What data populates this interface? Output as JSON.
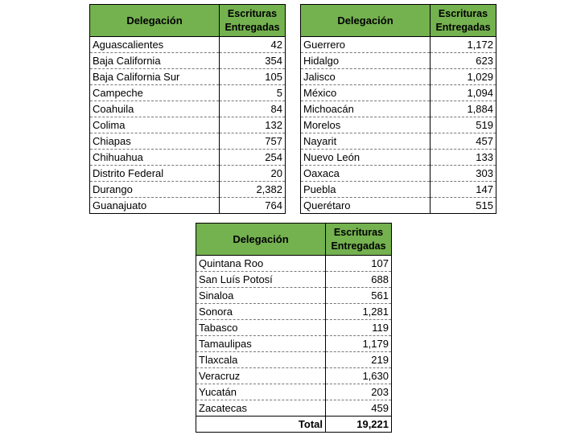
{
  "header": {
    "name": "Delegación",
    "value_line1": "Escrituras",
    "value_line2": "Entregadas"
  },
  "tables": [
    {
      "rows": [
        {
          "name": "Aguascalientes",
          "value": "42"
        },
        {
          "name": "Baja California",
          "value": "354"
        },
        {
          "name": "Baja California Sur",
          "value": "105"
        },
        {
          "name": "Campeche",
          "value": "5"
        },
        {
          "name": "Coahuila",
          "value": "84"
        },
        {
          "name": "Colima",
          "value": "132"
        },
        {
          "name": "Chiapas",
          "value": "757"
        },
        {
          "name": "Chihuahua",
          "value": "254"
        },
        {
          "name": "Distrito Federal",
          "value": "20"
        },
        {
          "name": "Durango",
          "value": "2,382"
        },
        {
          "name": "Guanajuato",
          "value": "764"
        }
      ]
    },
    {
      "rows": [
        {
          "name": "Guerrero",
          "value": "1,172"
        },
        {
          "name": "Hidalgo",
          "value": "623"
        },
        {
          "name": "Jalisco",
          "value": "1,029"
        },
        {
          "name": "México",
          "value": "1,094"
        },
        {
          "name": "Michoacán",
          "value": "1,884"
        },
        {
          "name": "Morelos",
          "value": "519"
        },
        {
          "name": "Nayarit",
          "value": "457"
        },
        {
          "name": "Nuevo León",
          "value": "133"
        },
        {
          "name": "Oaxaca",
          "value": "303"
        },
        {
          "name": "Puebla",
          "value": "147"
        },
        {
          "name": "Querétaro",
          "value": "515"
        }
      ]
    },
    {
      "rows": [
        {
          "name": "Quintana Roo",
          "value": "107"
        },
        {
          "name": "San Luís Potosí",
          "value": "688"
        },
        {
          "name": "Sinaloa",
          "value": "561"
        },
        {
          "name": "Sonora",
          "value": "1,281"
        },
        {
          "name": "Tabasco",
          "value": "119"
        },
        {
          "name": "Tamaulipas",
          "value": "1,179"
        },
        {
          "name": "Tlaxcala",
          "value": "219"
        },
        {
          "name": "Veracruz",
          "value": "1,630"
        },
        {
          "name": "Yucatán",
          "value": "203"
        },
        {
          "name": "Zacatecas",
          "value": "459"
        }
      ],
      "total": {
        "label": "Total",
        "value": "19,221"
      }
    }
  ]
}
